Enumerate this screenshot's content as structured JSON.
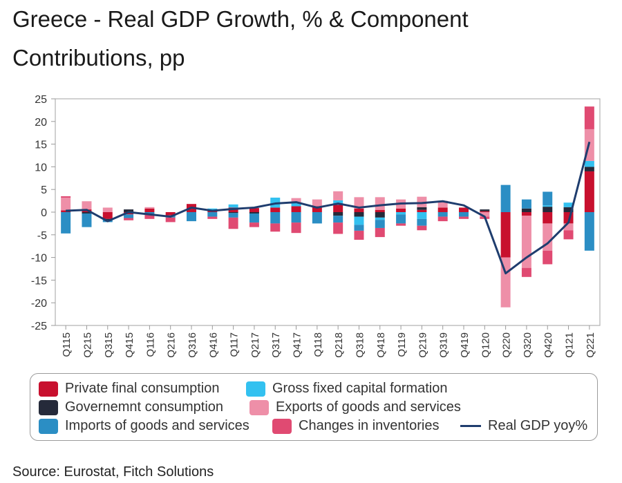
{
  "title": "Greece - Real GDP Growth, % & Component Contributions, pp",
  "source": "Source: Eurostat, Fitch Solutions",
  "chart_data": {
    "type": "bar",
    "stacked": true,
    "title": "Greece - Real GDP Growth, % & Component Contributions, pp",
    "xlabel": "",
    "ylabel": "",
    "ylim": [
      -25,
      25
    ],
    "yticks": [
      25,
      20,
      15,
      10,
      5,
      0,
      -5,
      -10,
      -15,
      -20,
      -25
    ],
    "grid": false,
    "legend_position": "bottom",
    "categories": [
      "Q115",
      "Q215",
      "Q315",
      "Q415",
      "Q116",
      "Q216",
      "Q316",
      "Q416",
      "Q117",
      "Q217",
      "Q317",
      "Q417",
      "Q118",
      "Q218",
      "Q318",
      "Q418",
      "Q119",
      "Q219",
      "Q319",
      "Q419",
      "Q120",
      "Q220",
      "Q320",
      "Q420",
      "Q121",
      "Q221"
    ],
    "series": [
      {
        "name": "Private final consumption",
        "kind": "bar",
        "color": "#c8102e",
        "values": [
          0.4,
          0.6,
          -1.5,
          -0.5,
          0.8,
          -0.7,
          1.8,
          0.3,
          1.0,
          0.9,
          1.0,
          1.3,
          1.3,
          1.6,
          0.8,
          0.5,
          0.8,
          0.5,
          1.0,
          1.0,
          0.2,
          -10.0,
          -0.8,
          -2.5,
          -2.5,
          9.0
        ]
      },
      {
        "name": "Governemnt consumption",
        "kind": "bar",
        "color": "#252a3a",
        "values": [
          0.0,
          -0.3,
          -0.2,
          0.6,
          0.0,
          0.0,
          0.0,
          0.0,
          -0.2,
          -0.3,
          0.0,
          0.0,
          0.0,
          -0.8,
          -1.0,
          -1.2,
          0.0,
          0.6,
          0.0,
          0.0,
          0.4,
          0.0,
          0.8,
          1.2,
          1.1,
          1.0
        ]
      },
      {
        "name": "Gross fixed capital formation",
        "kind": "bar",
        "color": "#33c1f0",
        "values": [
          0.0,
          0.0,
          0.0,
          0.0,
          0.0,
          0.0,
          0.0,
          0.5,
          0.7,
          0.0,
          2.2,
          0.8,
          0.0,
          1.0,
          -1.8,
          -0.5,
          -0.5,
          -1.5,
          0.0,
          0.0,
          0.0,
          0.0,
          0.0,
          0.3,
          1.0,
          1.3
        ]
      },
      {
        "name": "Exports of goods and services",
        "kind": "bar",
        "color": "#ee8fa8",
        "values": [
          2.8,
          1.8,
          1.0,
          0.0,
          0.3,
          0.0,
          0.0,
          0.0,
          0.0,
          0.0,
          0.0,
          1.0,
          1.5,
          2.0,
          2.5,
          2.8,
          2.0,
          2.3,
          1.5,
          0.0,
          -1.0,
          -11.0,
          -11.5,
          -6.0,
          -1.5,
          7.0
        ]
      },
      {
        "name": "Imports of goods and services",
        "kind": "bar",
        "color": "#2b8ec4",
        "values": [
          -4.7,
          -3.0,
          -0.5,
          -0.8,
          -0.5,
          -0.5,
          -2.0,
          -1.0,
          -1.0,
          -2.0,
          -2.5,
          -2.3,
          -2.5,
          -1.5,
          -1.3,
          -1.8,
          -2.0,
          -1.5,
          -1.0,
          -1.0,
          0.0,
          6.0,
          2.0,
          3.0,
          0.0,
          -8.5
        ]
      },
      {
        "name": "Changes in inventories",
        "kind": "bar",
        "color": "#e04a72",
        "values": [
          0.3,
          0.0,
          0.0,
          -0.5,
          -1.0,
          -1.0,
          0.0,
          -0.5,
          -2.5,
          -1.0,
          -1.8,
          -2.3,
          0.0,
          -2.5,
          -2.0,
          -2.0,
          -0.5,
          -1.0,
          -1.0,
          -0.5,
          -0.5,
          0.0,
          -2.0,
          -3.0,
          -2.0,
          5.0
        ]
      },
      {
        "name": "Real GDP yoy%",
        "kind": "line",
        "color": "#1f3d6e",
        "values": [
          0.3,
          0.5,
          -2.0,
          0.0,
          -0.5,
          -1.0,
          1.0,
          0.3,
          0.7,
          1.0,
          1.9,
          2.2,
          1.0,
          1.9,
          1.0,
          1.5,
          1.9,
          2.0,
          2.4,
          1.5,
          -1.0,
          -13.5,
          -10.0,
          -6.9,
          -2.3,
          15.5
        ]
      }
    ]
  },
  "legend": {
    "items": [
      {
        "label": "Private final consumption",
        "color": "#c8102e",
        "kind": "bar"
      },
      {
        "label": "Gross fixed capital formation",
        "color": "#33c1f0",
        "kind": "bar"
      },
      {
        "label": "Governemnt consumption",
        "color": "#252a3a",
        "kind": "bar"
      },
      {
        "label": "Exports of goods and services",
        "color": "#ee8fa8",
        "kind": "bar"
      },
      {
        "label": "Imports of goods and services",
        "color": "#2b8ec4",
        "kind": "bar"
      },
      {
        "label": "Changes in inventories",
        "color": "#e04a72",
        "kind": "bar"
      },
      {
        "label": "Real GDP yoy%",
        "color": "#1f3d6e",
        "kind": "line"
      }
    ]
  }
}
